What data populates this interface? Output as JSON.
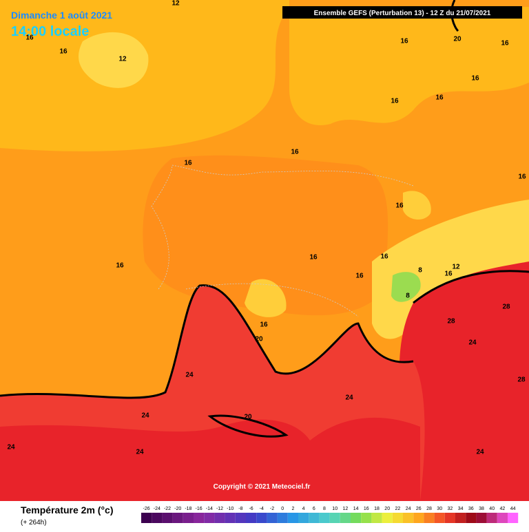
{
  "header": {
    "date": "Dimanche 1 août 2021",
    "time": "14:00 locale",
    "model": "Ensemble GEFS  (Perturbation 13)  -  12 Z du 21/07/2021",
    "copyright": "Copyright © 2021 Meteociel.fr"
  },
  "legend": {
    "title": "Température 2m (°c)",
    "lead": "(+ 264h)",
    "scale": [
      -26,
      -24,
      -22,
      -20,
      -18,
      -16,
      -14,
      -12,
      -10,
      -8,
      -6,
      -4,
      -2,
      0,
      2,
      4,
      6,
      8,
      10,
      12,
      14,
      16,
      18,
      20,
      22,
      24,
      26,
      28,
      30,
      32,
      34,
      36,
      38,
      40,
      42,
      44
    ]
  },
  "contour_labels": [
    12,
    16,
    16,
    12,
    16,
    20,
    16,
    16,
    16,
    16,
    16,
    16,
    16,
    16,
    16,
    16,
    16,
    16,
    8,
    12,
    16,
    8,
    28,
    28,
    16,
    20,
    24,
    24,
    28,
    24,
    20,
    24,
    24,
    24,
    24
  ]
}
